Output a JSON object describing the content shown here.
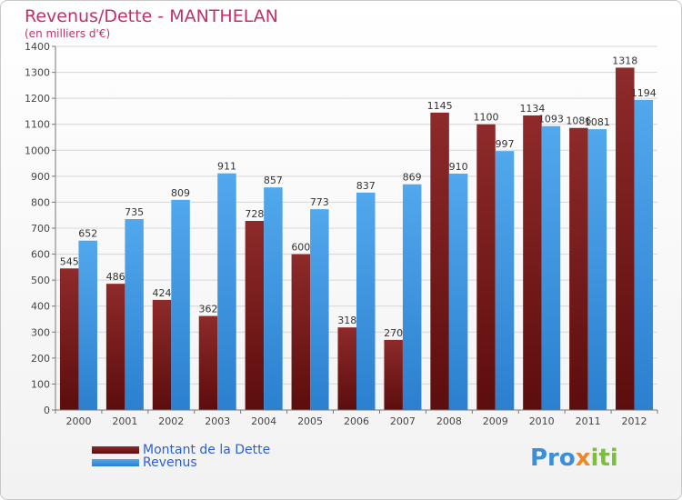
{
  "title": "Revenus/Dette - MANTHELAN",
  "subtitle": "(en milliers d'€)",
  "logo": {
    "part1": "Pro",
    "part2": "x",
    "part3": "iti"
  },
  "colors": {
    "dette": "#7a1c1c",
    "revenus": "#3f9ae2",
    "title": "#c0306c",
    "legend_text": "#2c5fd0"
  },
  "legend": [
    {
      "label": "Montant de la Dette",
      "color": "#7a1c1c"
    },
    {
      "label": "Revenus",
      "color": "#3f9ae2"
    }
  ],
  "chart_data": {
    "type": "bar",
    "categories": [
      "2000",
      "2001",
      "2002",
      "2003",
      "2004",
      "2005",
      "2006",
      "2007",
      "2008",
      "2009",
      "2010",
      "2011",
      "2012"
    ],
    "series": [
      {
        "name": "Montant de la Dette",
        "values": [
          545,
          486,
          424,
          362,
          728,
          600,
          318,
          270,
          1145,
          1100,
          1134,
          1086,
          1318
        ]
      },
      {
        "name": "Revenus",
        "values": [
          652,
          735,
          809,
          911,
          857,
          773,
          837,
          869,
          910,
          997,
          1093,
          1081,
          1194
        ]
      }
    ],
    "ylim": [
      0,
      1400
    ],
    "yticks": [
      0,
      100,
      200,
      300,
      400,
      500,
      600,
      700,
      800,
      900,
      1000,
      1100,
      1200,
      1300,
      1400
    ],
    "grid": true
  }
}
